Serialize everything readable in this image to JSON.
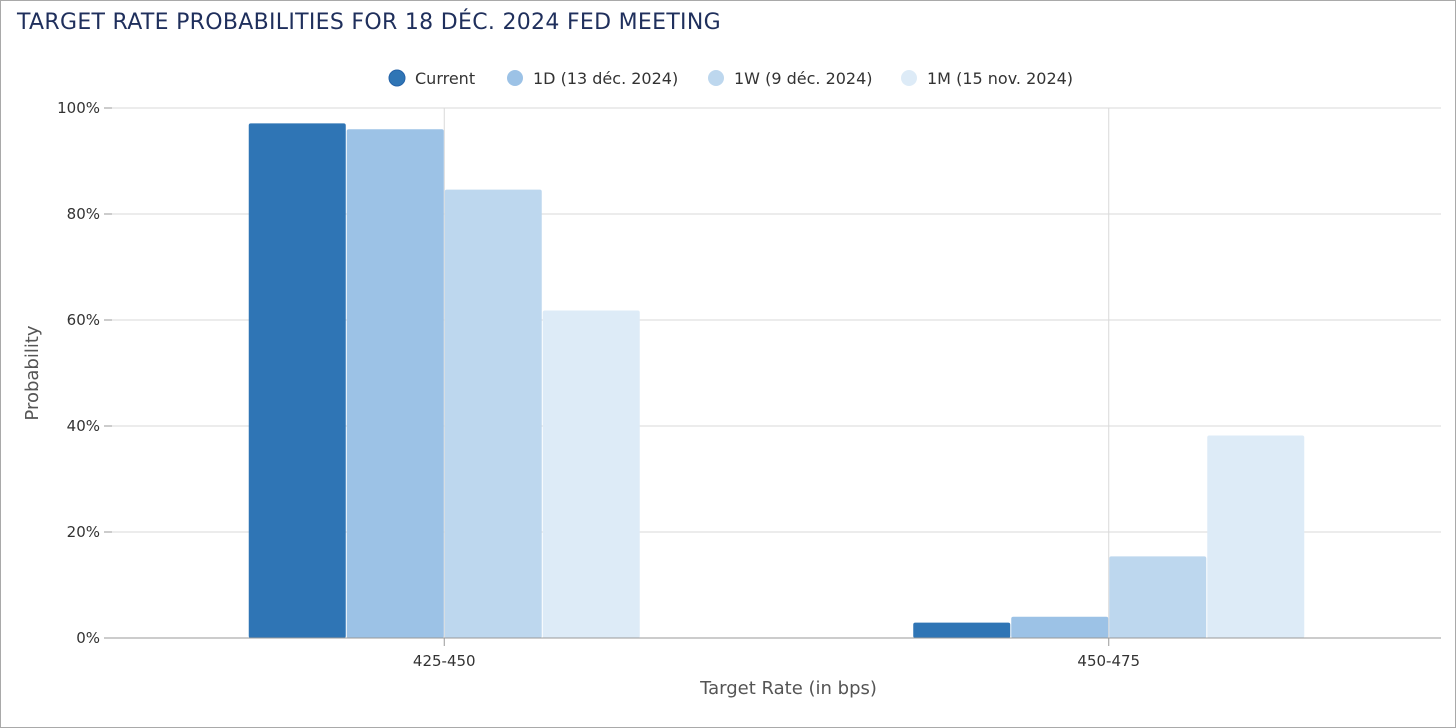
{
  "chart_data": {
    "type": "bar",
    "title": "TARGET RATE PROBABILITIES FOR 18 DÉC. 2024 FED MEETING",
    "xlabel": "Target Rate (in bps)",
    "ylabel": "Probability",
    "categories": [
      "425-450",
      "450-475"
    ],
    "ylim": [
      0,
      100
    ],
    "yticks": [
      "0%",
      "20%",
      "40%",
      "60%",
      "80%",
      "100%"
    ],
    "ytick_values": [
      0,
      20,
      40,
      60,
      80,
      100
    ],
    "grid": true,
    "legend_position": "top-center",
    "series": [
      {
        "name": "Current",
        "color": "#2f75b5",
        "values": [
          97.1,
          2.9
        ]
      },
      {
        "name": "1D (13 déc. 2024)",
        "color": "#9cc2e6",
        "values": [
          96.0,
          4.0
        ]
      },
      {
        "name": "1W (9 déc. 2024)",
        "color": "#bdd7ee",
        "values": [
          84.6,
          15.4
        ]
      },
      {
        "name": "1M (15 nov. 2024)",
        "color": "#ddebf7",
        "values": [
          61.8,
          38.2
        ]
      }
    ]
  }
}
